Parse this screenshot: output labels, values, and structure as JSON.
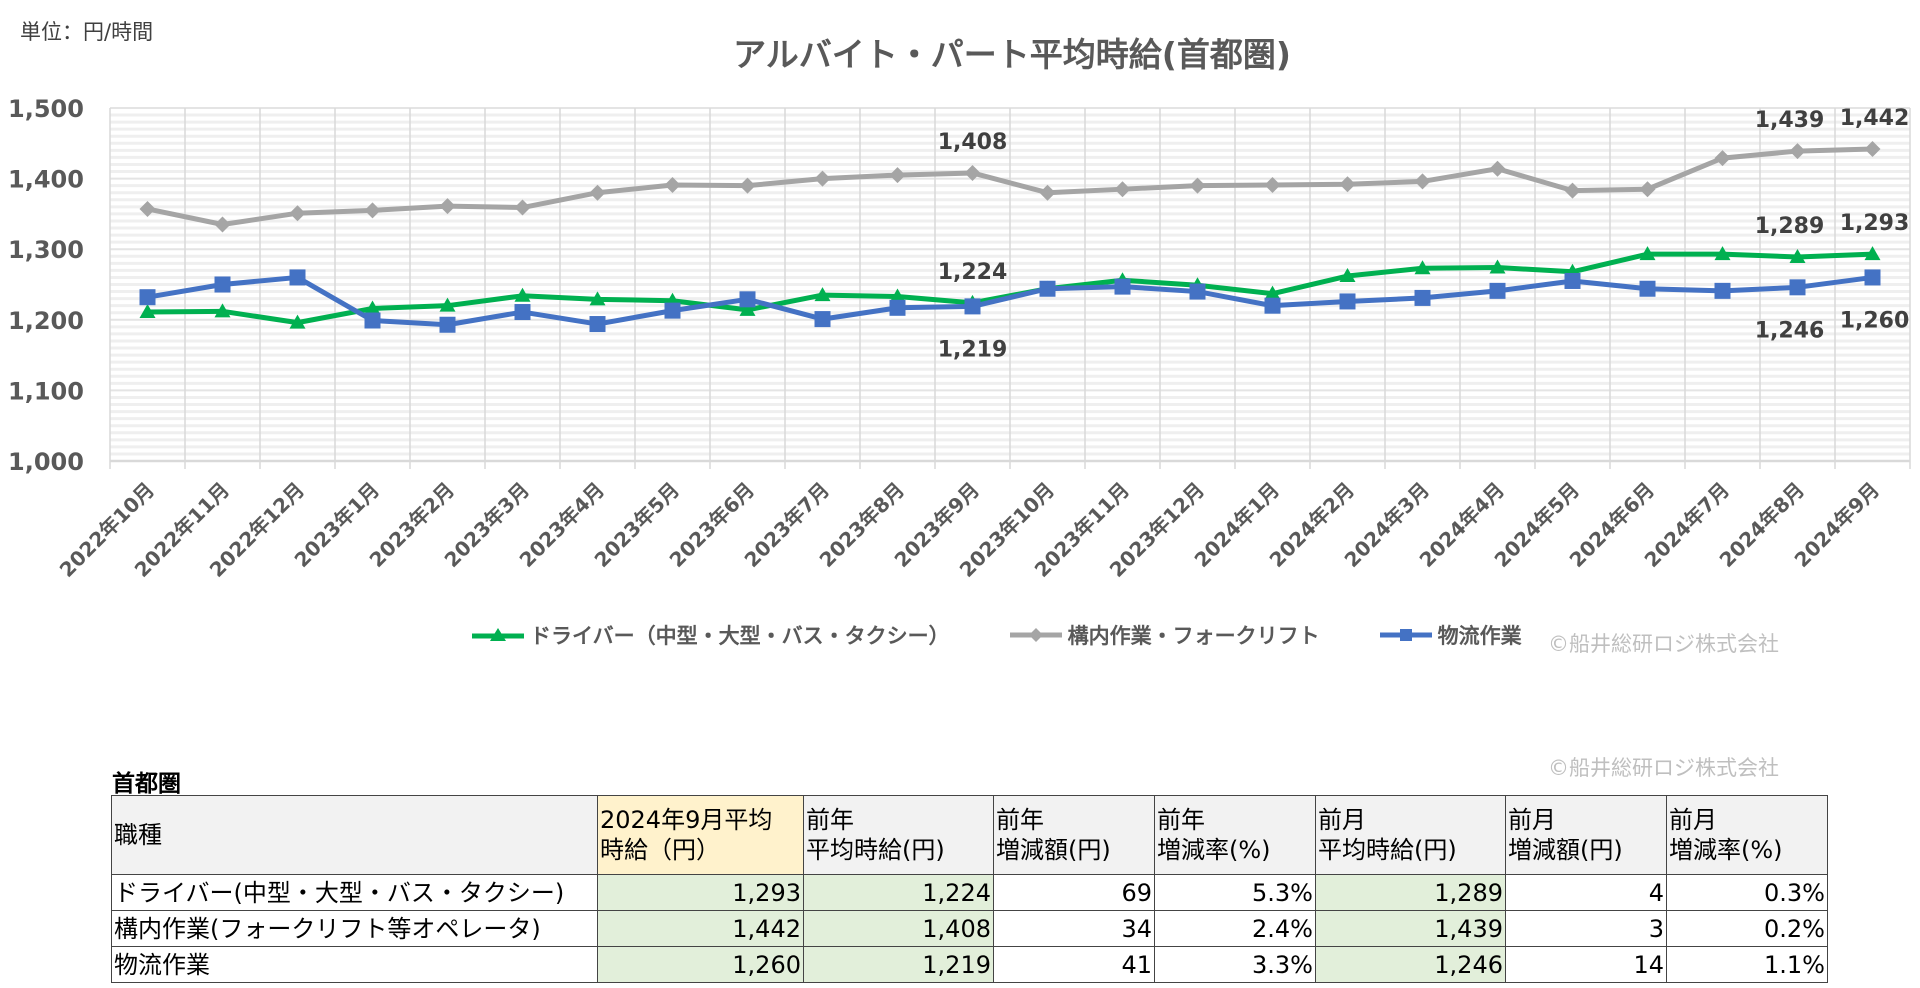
{
  "unit_label": "単位：円/時間",
  "copyright": "©船井総研ロジ株式会社",
  "chart_data": {
    "type": "line",
    "title": "アルバイト・パート平均時給(首都圏)",
    "categories": [
      "2022年10月",
      "2022年11月",
      "2022年12月",
      "2023年1月",
      "2023年2月",
      "2023年3月",
      "2023年4月",
      "2023年5月",
      "2023年6月",
      "2023年7月",
      "2023年8月",
      "2023年9月",
      "2023年10月",
      "2023年11月",
      "2023年12月",
      "2024年1月",
      "2024年2月",
      "2024年3月",
      "2024年4月",
      "2024年5月",
      "2024年6月",
      "2024年7月",
      "2024年8月",
      "2024年9月"
    ],
    "ylim": [
      1000,
      1500
    ],
    "yticks": [
      "1,000",
      "1,100",
      "1,200",
      "1,300",
      "1,400",
      "1,500"
    ],
    "grid": true,
    "legend": "bottom",
    "series": [
      {
        "name": "ドライバー（中型・大型・バス・タクシー）",
        "color": "#00b050",
        "marker": "triangle",
        "values": [
          1211,
          1212,
          1196,
          1216,
          1220,
          1234,
          1229,
          1227,
          1214,
          1235,
          1233,
          1224,
          1244,
          1256,
          1249,
          1237,
          1262,
          1273,
          1274,
          1268,
          1293,
          1293,
          1289,
          1293
        ],
        "labels": {
          "11": "1,224",
          "22": "1,289",
          "23": "1,293"
        }
      },
      {
        "name": "構内作業・フォークリフト",
        "color": "#a5a5a5",
        "marker": "diamond",
        "values": [
          1357,
          1335,
          1351,
          1355,
          1361,
          1359,
          1380,
          1391,
          1390,
          1400,
          1405,
          1408,
          1380,
          1385,
          1390,
          1391,
          1392,
          1396,
          1414,
          1383,
          1385,
          1429,
          1439,
          1442
        ],
        "labels": {
          "11": "1,408",
          "22": "1,439",
          "23": "1,442"
        }
      },
      {
        "name": "物流作業",
        "color": "#4472c4",
        "marker": "square",
        "values": [
          1232,
          1250,
          1260,
          1199,
          1193,
          1211,
          1194,
          1213,
          1229,
          1201,
          1217,
          1219,
          1244,
          1247,
          1240,
          1220,
          1226,
          1231,
          1241,
          1255,
          1244,
          1241,
          1246,
          1260
        ],
        "labels": {
          "11": "1,219",
          "22": "1,246",
          "23": "1,260"
        }
      }
    ]
  },
  "table": {
    "title": "首都圏",
    "headers": [
      [
        "職種"
      ],
      [
        "2024年9月平均",
        "時給（円）"
      ],
      [
        "前年",
        "平均時給(円)"
      ],
      [
        "前年",
        "増減額(円)"
      ],
      [
        "前年",
        "増減率(%)"
      ],
      [
        "前月",
        "平均時給(円)"
      ],
      [
        "前月",
        "増減額(円)"
      ],
      [
        "前月",
        "増減率(%)"
      ]
    ],
    "rows": [
      [
        "ドライバー(中型・大型・バス・タクシー)",
        "1,293",
        "1,224",
        "69",
        "5.3%",
        "1,289",
        "4",
        "0.3%"
      ],
      [
        "構内作業(フォークリフト等オペレータ)",
        "1,442",
        "1,408",
        "34",
        "2.4%",
        "1,439",
        "3",
        "0.2%"
      ],
      [
        "物流作業",
        "1,260",
        "1,219",
        "41",
        "3.3%",
        "1,246",
        "14",
        "1.1%"
      ]
    ]
  }
}
